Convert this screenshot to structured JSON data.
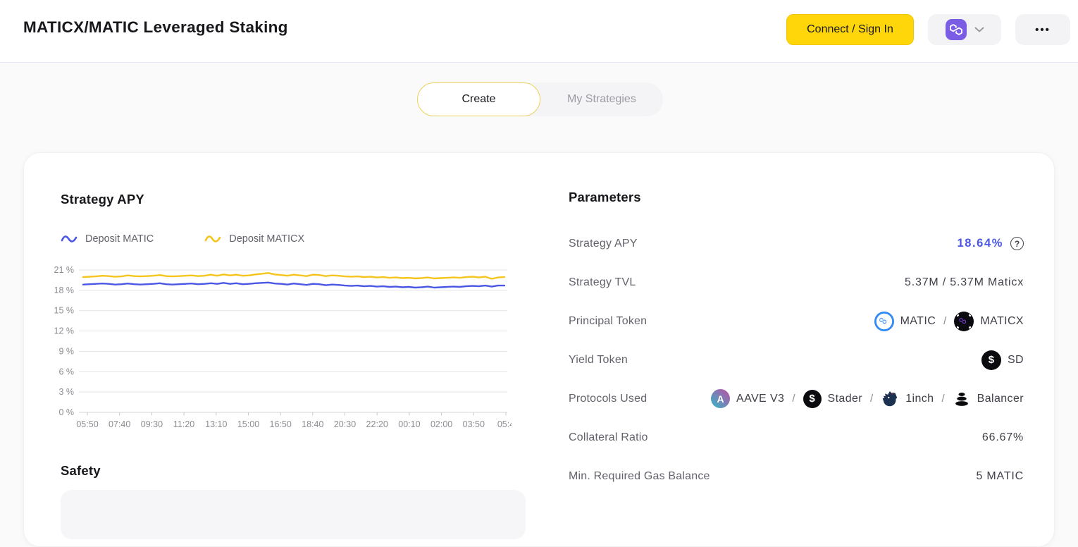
{
  "header": {
    "title": "MATICX/MATIC Leveraged Staking",
    "connect_button": "Connect / Sign In",
    "network_icon": "polygon-network",
    "more_button": "•••"
  },
  "tabs": {
    "create": "Create",
    "my_strategies": "My Strategies"
  },
  "strategy_section": {
    "chart_title": "Strategy APY",
    "legend": [
      {
        "label": "Deposit MATIC",
        "color": "#4a57e5"
      },
      {
        "label": "Deposit MATICX",
        "color": "#f5c51d"
      }
    ],
    "safety_title": "Safety"
  },
  "chart_data": {
    "type": "line",
    "title": "Strategy APY",
    "ylabel": "%",
    "ylim": [
      0,
      21
    ],
    "yticks": [
      0,
      3,
      6,
      9,
      12,
      15,
      18,
      21
    ],
    "ytick_suffix": " %",
    "grid": true,
    "legend_position": "top-left",
    "xticks": [
      "05:50",
      "07:40",
      "09:30",
      "11:20",
      "13:10",
      "15:00",
      "16:50",
      "18:40",
      "20:30",
      "22:20",
      "00:10",
      "02:00",
      "03:50",
      "05:4"
    ],
    "series": [
      {
        "name": "Deposit MATIC",
        "color": "#4a57e5",
        "values": [
          18.85,
          18.9,
          18.95,
          19.0,
          18.95,
          18.85,
          18.9,
          19.0,
          18.9,
          18.85,
          18.9,
          18.95,
          19.05,
          18.9,
          18.85,
          18.9,
          18.95,
          19.0,
          18.9,
          18.95,
          19.05,
          18.95,
          19.1,
          18.95,
          19.05,
          18.9,
          18.95,
          19.05,
          19.1,
          19.15,
          19.0,
          18.95,
          18.85,
          19.0,
          18.9,
          18.8,
          18.95,
          18.9,
          18.75,
          18.85,
          18.8,
          18.7,
          18.65,
          18.7,
          18.6,
          18.65,
          18.55,
          18.6,
          18.5,
          18.55,
          18.45,
          18.5,
          18.4,
          18.45,
          18.55,
          18.4,
          18.45,
          18.5,
          18.55,
          18.5,
          18.6,
          18.65,
          18.6,
          18.7,
          18.55,
          18.7,
          18.7
        ]
      },
      {
        "name": "Deposit MATICX",
        "color": "#f5c51d",
        "values": [
          19.95,
          20.0,
          20.05,
          20.15,
          20.1,
          20.0,
          20.05,
          20.2,
          20.1,
          20.05,
          20.1,
          20.15,
          20.25,
          20.1,
          20.05,
          20.1,
          20.15,
          20.2,
          20.1,
          20.15,
          20.3,
          20.15,
          20.35,
          20.2,
          20.3,
          20.15,
          20.2,
          20.35,
          20.45,
          20.55,
          20.35,
          20.25,
          20.15,
          20.3,
          20.2,
          20.1,
          20.3,
          20.25,
          20.1,
          20.2,
          20.15,
          20.05,
          20.0,
          20.05,
          19.95,
          20.0,
          19.9,
          19.95,
          19.85,
          19.9,
          19.8,
          19.85,
          19.75,
          19.8,
          19.9,
          19.75,
          19.8,
          19.85,
          19.9,
          19.85,
          19.95,
          20.0,
          19.9,
          20.0,
          19.7,
          19.9,
          19.95
        ]
      }
    ]
  },
  "parameters": {
    "title": "Parameters",
    "separator": "/",
    "help_icon": "?",
    "rows": [
      {
        "label": "Strategy APY",
        "value": "18.64%",
        "value_color": "#4a57e5"
      },
      {
        "label": "Strategy TVL",
        "value": "5.37M / 5.37M Maticx"
      },
      {
        "label": "Principal Token",
        "token1": "MATIC",
        "token2": "MATICX"
      },
      {
        "label": "Yield Token",
        "token": "SD"
      },
      {
        "label": "Protocols Used",
        "protocols": [
          "AAVE V3",
          "Stader",
          "1inch",
          "Balancer"
        ]
      },
      {
        "label": "Collateral Ratio",
        "value": "66.67%"
      },
      {
        "label": "Min. Required Gas Balance",
        "value": "5 MATIC"
      }
    ]
  }
}
